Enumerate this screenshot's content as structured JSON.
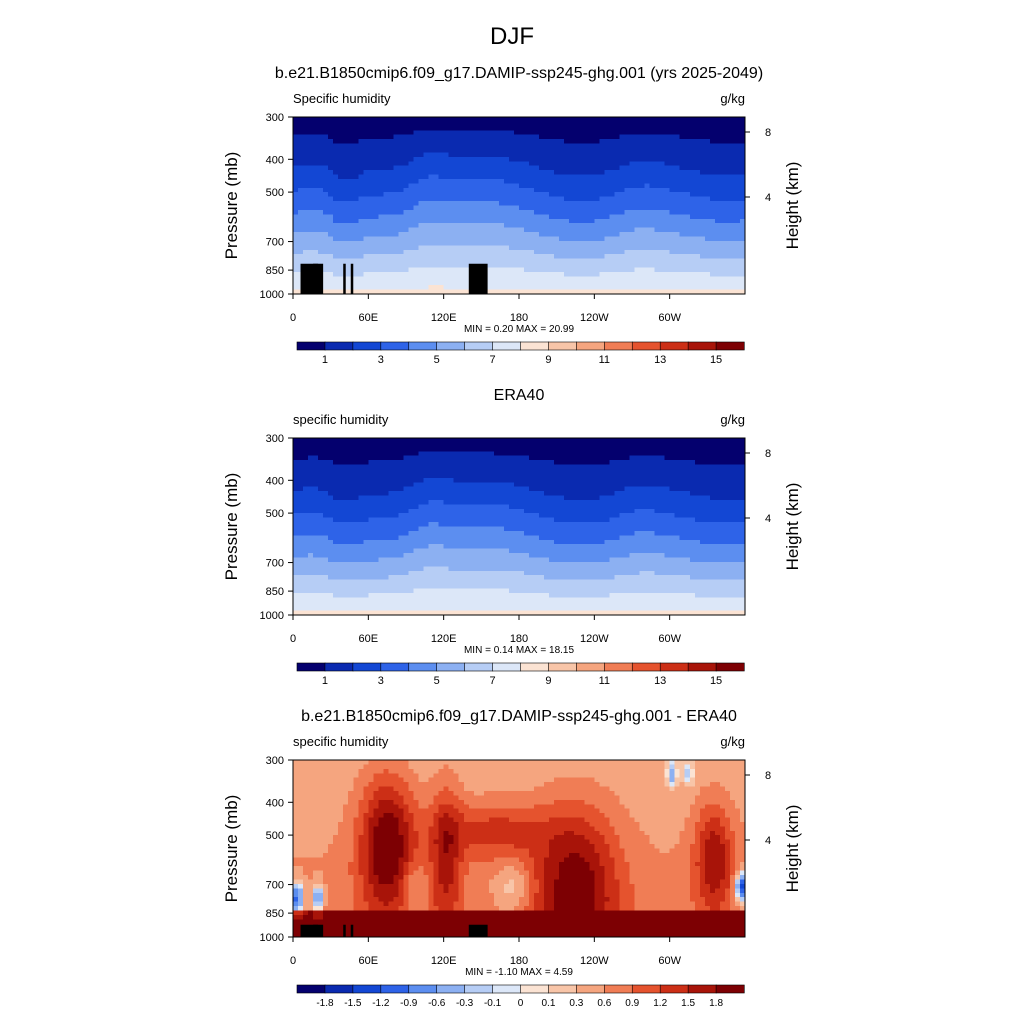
{
  "main_title": "DJF",
  "chart_data": [
    {
      "type": "heatmap",
      "title": "b.e21.B1850cmip6.f09_g17.DAMIP-ssp245-ghg.001 (yrs 2025-2049)",
      "variable_label": "Specific humidity",
      "units": "g/kg",
      "ylabel": "Pressure (mb)",
      "y2label": "Height (km)",
      "yticks": [
        300,
        400,
        500,
        700,
        850,
        1000
      ],
      "y2ticks": [
        8,
        4
      ],
      "xticks": [
        "0",
        "60E",
        "120E",
        "180",
        "120W",
        "60W"
      ],
      "stats": "MIN =   0.20  MAX =  20.99",
      "min": 0.2,
      "max": 20.99,
      "levels": [
        1,
        3,
        5,
        7,
        9,
        11,
        13,
        15
      ],
      "colorbar_labels": [
        "1",
        "3",
        "5",
        "7",
        "9",
        "11",
        "13",
        "15"
      ],
      "terrain": true
    },
    {
      "type": "heatmap",
      "title": "ERA40",
      "variable_label": "specific humidity",
      "units": "g/kg",
      "ylabel": "Pressure (mb)",
      "y2label": "Height (km)",
      "yticks": [
        300,
        400,
        500,
        700,
        850,
        1000
      ],
      "y2ticks": [
        8,
        4
      ],
      "xticks": [
        "0",
        "60E",
        "120E",
        "180",
        "120W",
        "60W"
      ],
      "stats": "MIN =   0.14  MAX =  18.15",
      "min": 0.14,
      "max": 18.15,
      "levels": [
        1,
        3,
        5,
        7,
        9,
        11,
        13,
        15
      ],
      "colorbar_labels": [
        "1",
        "3",
        "5",
        "7",
        "9",
        "11",
        "13",
        "15"
      ],
      "terrain": false
    },
    {
      "type": "heatmap",
      "title": "b.e21.B1850cmip6.f09_g17.DAMIP-ssp245-ghg.001 - ERA40",
      "variable_label": "specific humidity",
      "units": "g/kg",
      "ylabel": "Pressure (mb)",
      "y2label": "Height (km)",
      "yticks": [
        300,
        400,
        500,
        700,
        850,
        1000
      ],
      "y2ticks": [
        8,
        4
      ],
      "xticks": [
        "0",
        "60E",
        "120E",
        "180",
        "120W",
        "60W"
      ],
      "stats": "MIN =  -1.10  MAX =   4.59",
      "min": -1.1,
      "max": 4.59,
      "levels": [
        -1.8,
        -1.5,
        -1.2,
        -0.9,
        -0.6,
        -0.3,
        -0.1,
        0,
        0.1,
        0.3,
        0.6,
        0.9,
        1.2,
        1.5,
        1.8
      ],
      "colorbar_labels": [
        "-1.8",
        "-1.5",
        "-1.2",
        "-0.9",
        "-0.6",
        "-0.3",
        "-0.1",
        "0",
        "0.1",
        "0.3",
        "0.6",
        "0.9",
        "1.2",
        "1.5",
        "1.8"
      ],
      "terrain": true
    }
  ],
  "colors": {
    "abs_palette": [
      "#04006e",
      "#0a2ab0",
      "#1347d4",
      "#2e63e8",
      "#5c8ef0",
      "#8cb0f2",
      "#b6cdf5",
      "#dce7f8",
      "#fbe3d3",
      "#f8c5a8",
      "#f5a57f",
      "#f07d55",
      "#e5532e",
      "#cc2f16",
      "#a81409",
      "#7d0003"
    ],
    "diff_palette": [
      "#04006e",
      "#0a2ab0",
      "#1347d4",
      "#2e63e8",
      "#5c8ef0",
      "#8cb0f2",
      "#b6cdf5",
      "#dce7f8",
      "#fbe3d3",
      "#f8c5a8",
      "#f5a57f",
      "#f07d55",
      "#e5532e",
      "#cc2f16",
      "#a81409",
      "#7d0003"
    ],
    "terrain": "#000000"
  }
}
